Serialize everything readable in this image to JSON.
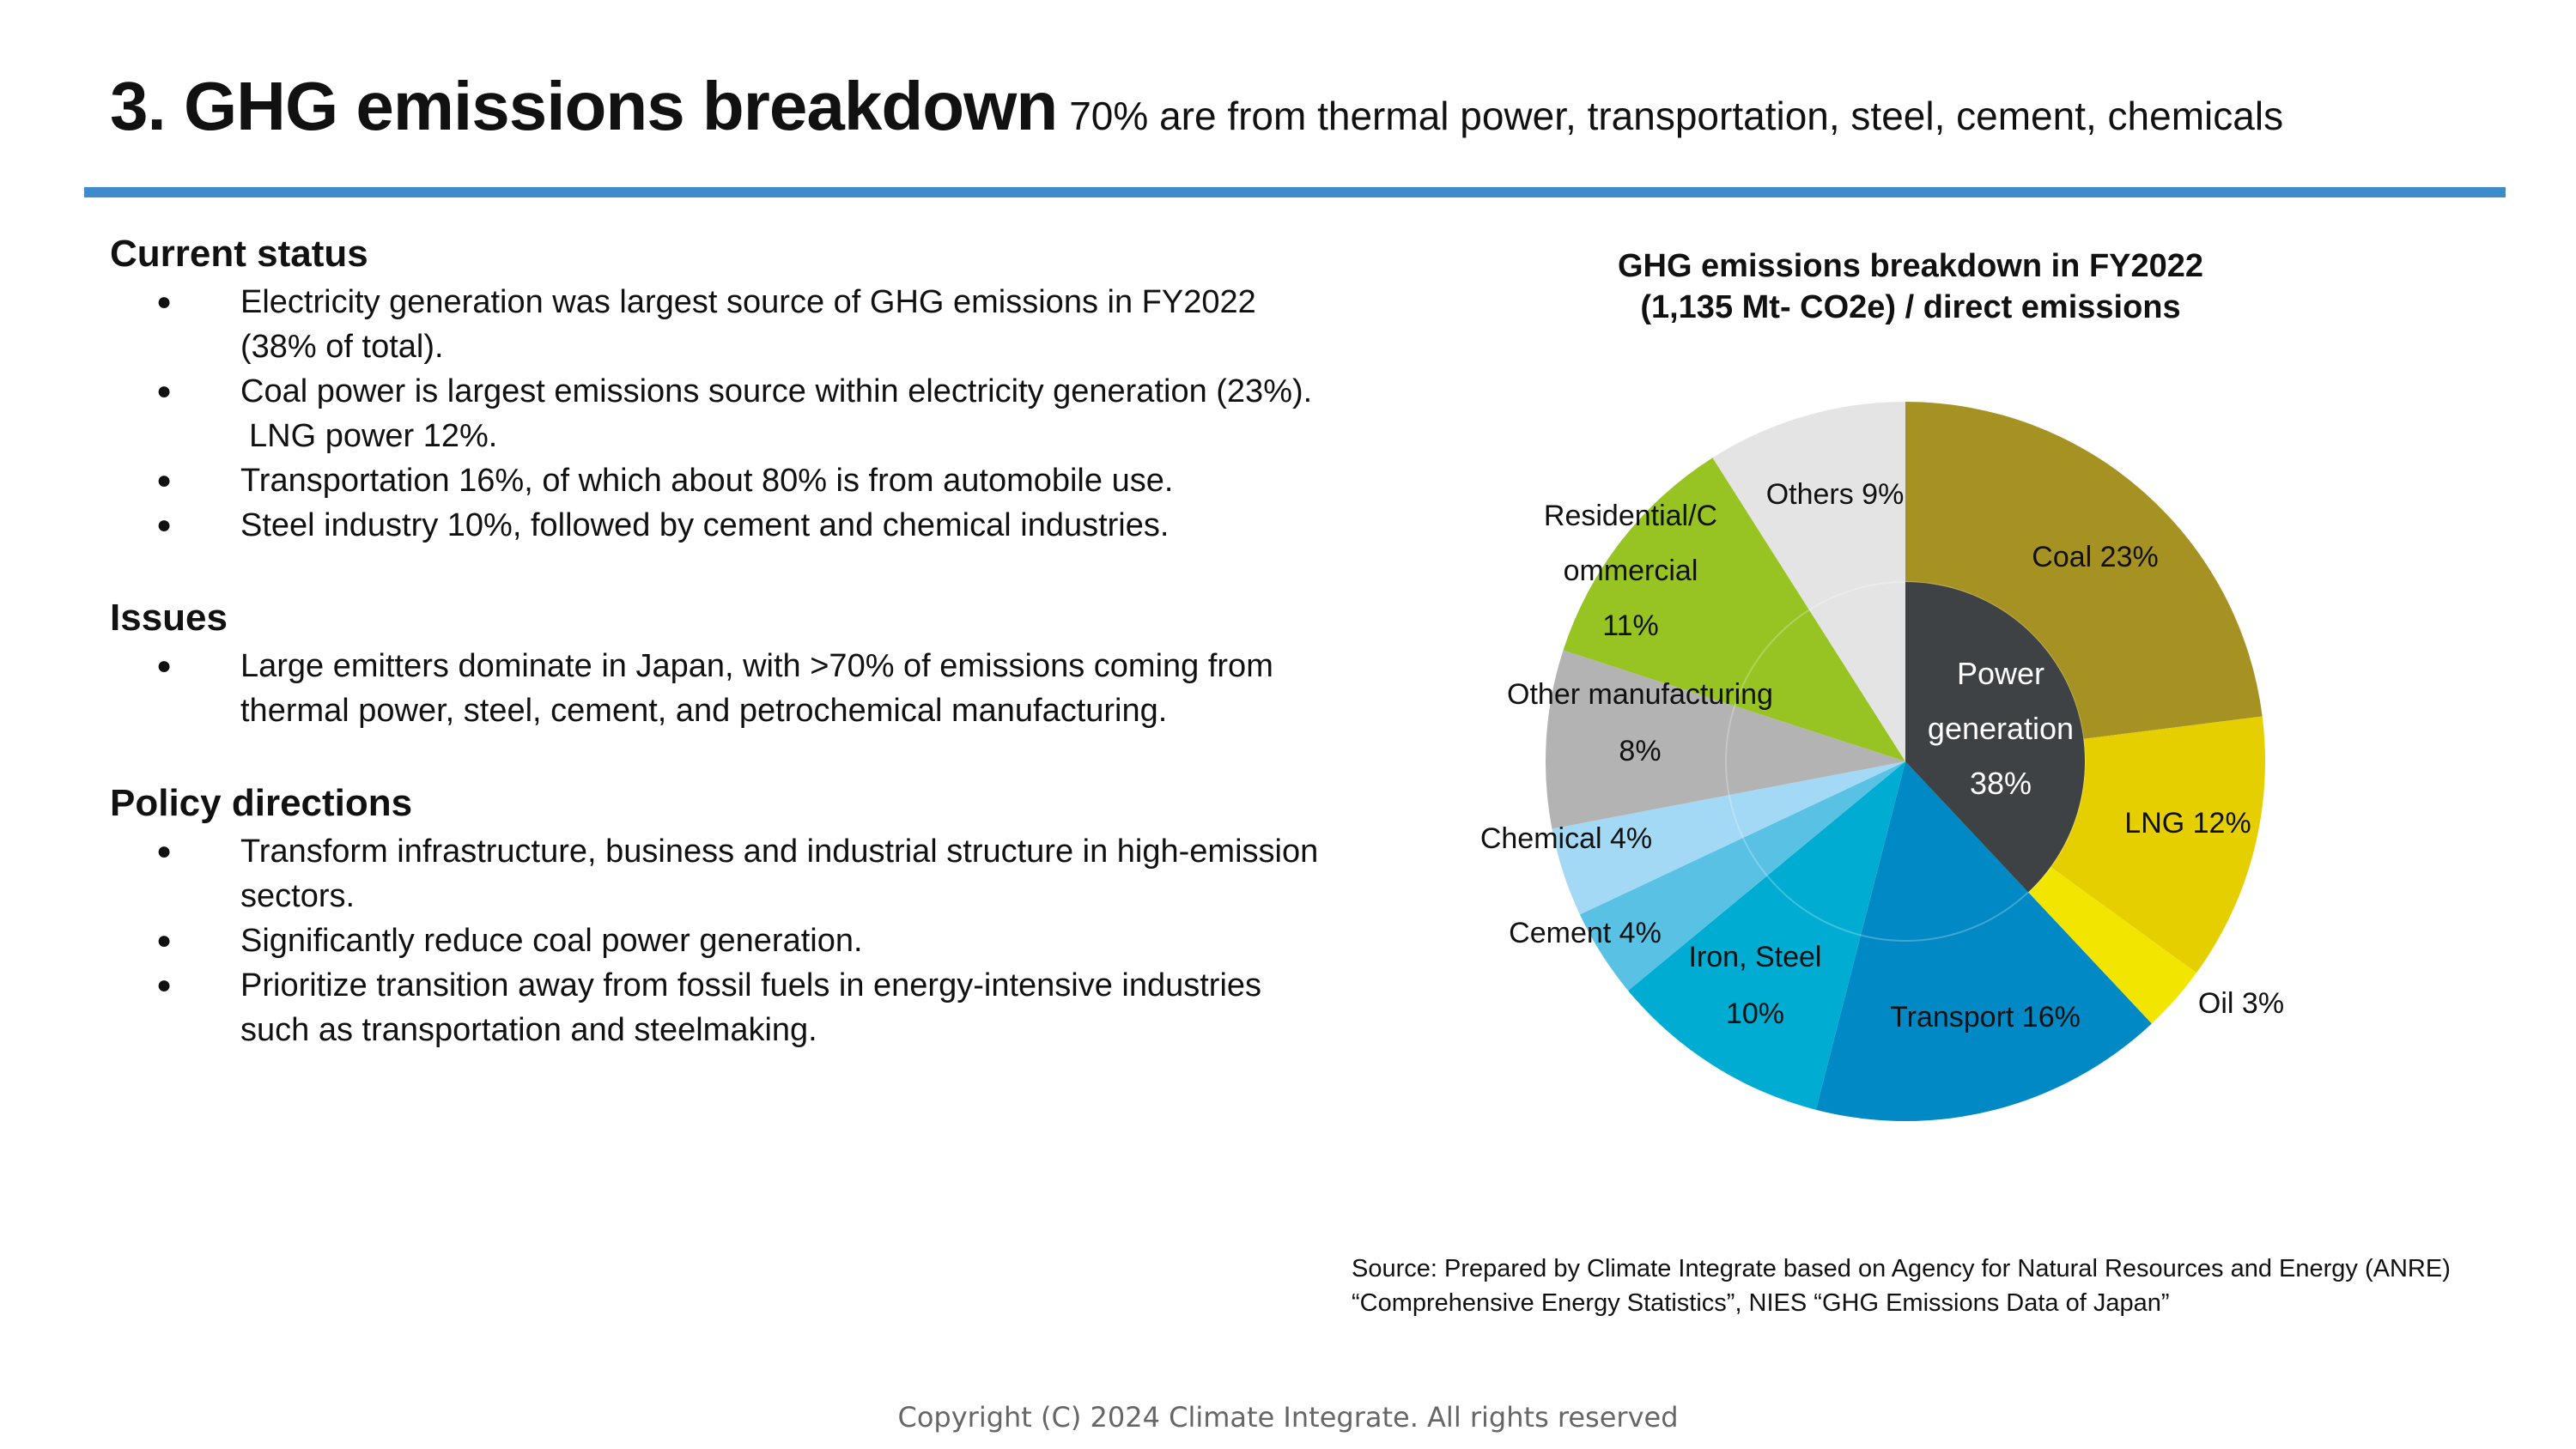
{
  "header": {
    "title": "3. GHG emissions breakdown",
    "subtitle": "70% are from thermal power, transportation, steel, cement, chemicals",
    "accent_color": "#3e8ccc"
  },
  "sections": [
    {
      "heading": "Current status",
      "bullets": [
        {
          "text": "Electricity generation was largest source of GHG emissions in FY2022 (38% of total)."
        },
        {
          "text": "Coal power is largest emissions source within electricity generation (23%).",
          "extra": "LNG power 12%."
        },
        {
          "text": "Transportation 16%, of which about 80% is from automobile use."
        },
        {
          "text": "Steel industry 10%, followed by cement and chemical industries."
        }
      ]
    },
    {
      "heading": "Issues",
      "bullets": [
        {
          "text": "Large emitters dominate in Japan, with >70% of emissions coming from thermal power, steel, cement, and petrochemical manufacturing."
        }
      ]
    },
    {
      "heading": "Policy directions",
      "bullets": [
        {
          "text": "Transform infrastructure, business and industrial structure in high-emission sectors."
        },
        {
          "text": "Significantly reduce coal power generation."
        },
        {
          "text": "Prioritize transition away from fossil fuels in energy-intensive industries such as transportation and steelmaking."
        }
      ]
    }
  ],
  "bullet_glyph": "●",
  "chart_data": {
    "type": "pie",
    "title": "GHG emissions breakdown in FY2022",
    "subtitle": "(1,135 Mt- CO2e) / direct emissions",
    "unit": "%",
    "start": "12 o'clock, clockwise",
    "outer_ring": [
      {
        "name": "Coal",
        "label": "Coal 23%",
        "value": 23,
        "color": "#a69222"
      },
      {
        "name": "LNG",
        "label": "LNG 12%",
        "value": 12,
        "color": "#e6cf00"
      },
      {
        "name": "Oil",
        "label": "Oil 3%",
        "value": 3,
        "color": "#f2e600"
      },
      {
        "name": "Transport",
        "label": "Transport 16%",
        "value": 16,
        "color": "#0089c4"
      },
      {
        "name": "Iron, Steel",
        "label_lines": [
          "Iron, Steel",
          "10%"
        ],
        "value": 10,
        "color": "#00acd2"
      },
      {
        "name": "Cement",
        "label": "Cement 4%",
        "value": 4,
        "color": "#59c1e4"
      },
      {
        "name": "Chemical",
        "label": "Chemical 4%",
        "value": 4,
        "color": "#a3d9f5"
      },
      {
        "name": "Other manufacturing",
        "label_lines": [
          "Other manufacturing",
          "8%"
        ],
        "value": 8,
        "color": "#b3b3b3"
      },
      {
        "name": "Residential/Commercial",
        "label_lines": [
          "Residential/C",
          "ommercial",
          "11%"
        ],
        "value": 11,
        "color": "#97c423"
      },
      {
        "name": "Others",
        "label": "Others 9%",
        "value": 9,
        "color": "#e4e4e4"
      }
    ],
    "inner": {
      "name": "Power generation",
      "label_lines": [
        "Power",
        "generation",
        "38%"
      ],
      "value": 38,
      "color": "#3f4244"
    }
  },
  "source": {
    "line1": "Source: Prepared by Climate Integrate based on Agency for Natural Resources and Energy (ANRE)",
    "line2": "“Comprehensive Energy Statistics”, NIES  “GHG Emissions Data of Japan”"
  },
  "footer": {
    "copyright": "Copyright (C) 2024 Climate Integrate. All rights reserved"
  }
}
